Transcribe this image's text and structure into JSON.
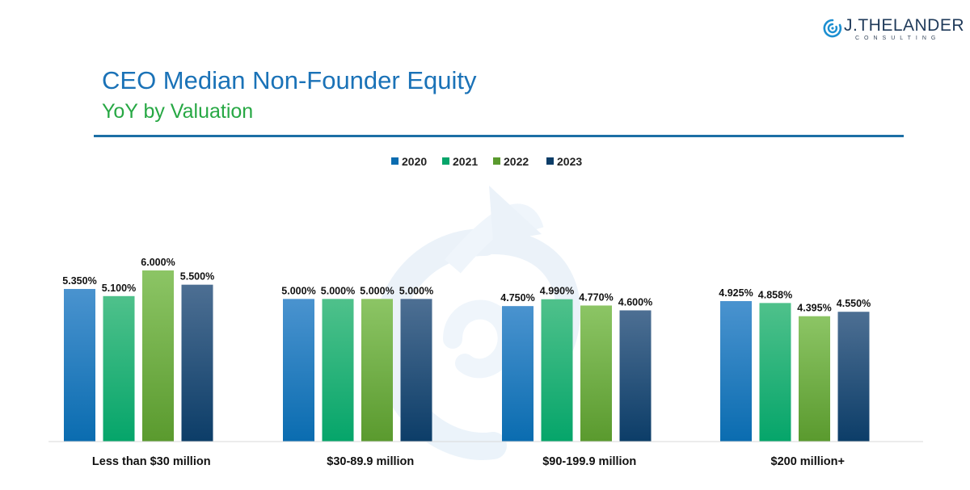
{
  "logo": {
    "name": "J.THELANDER",
    "sub": "CONSULTING"
  },
  "header": {
    "title": "CEO Median Non-Founder Equity",
    "subtitle": "YoY by Valuation"
  },
  "colors": {
    "title": "#1a72b7",
    "subtitle": "#27a844",
    "rule": "#1c6fa5",
    "watermark": "#d6e6f3"
  },
  "chart_data": {
    "type": "bar",
    "title": "CEO Median Non-Founder Equity",
    "subtitle": "YoY by Valuation",
    "categories": [
      "Less than $30 million",
      "$30-89.9 million",
      "$90-199.9 million",
      "$200 million+"
    ],
    "series": [
      {
        "name": "2020",
        "color_top": "#4a93cf",
        "color_bottom": "#0a6cb0",
        "values": [
          5.35,
          5.0,
          4.75,
          4.925
        ],
        "labels": [
          "5.350%",
          "5.000%",
          "4.750%",
          "4.925%"
        ]
      },
      {
        "name": "2021",
        "color_top": "#4fc18b",
        "color_bottom": "#05a56a",
        "values": [
          5.1,
          5.0,
          4.99,
          4.858
        ],
        "labels": [
          "5.100%",
          "5.000%",
          "4.990%",
          "4.858%"
        ]
      },
      {
        "name": "2022",
        "color_top": "#8cc565",
        "color_bottom": "#5a9a2e",
        "values": [
          6.0,
          5.0,
          4.77,
          4.395
        ],
        "labels": [
          "6.000%",
          "5.000%",
          "4.770%",
          "4.395%"
        ]
      },
      {
        "name": "2023",
        "color_top": "#4d6f93",
        "color_bottom": "#0c3d68",
        "values": [
          5.5,
          5.0,
          4.6,
          4.55
        ],
        "labels": [
          "5.500%",
          "5.000%",
          "4.600%",
          "4.550%"
        ]
      }
    ],
    "xlabel": "",
    "ylabel": "",
    "ylim": [
      0,
      6.0
    ],
    "legend": "top-center",
    "grid": false
  }
}
